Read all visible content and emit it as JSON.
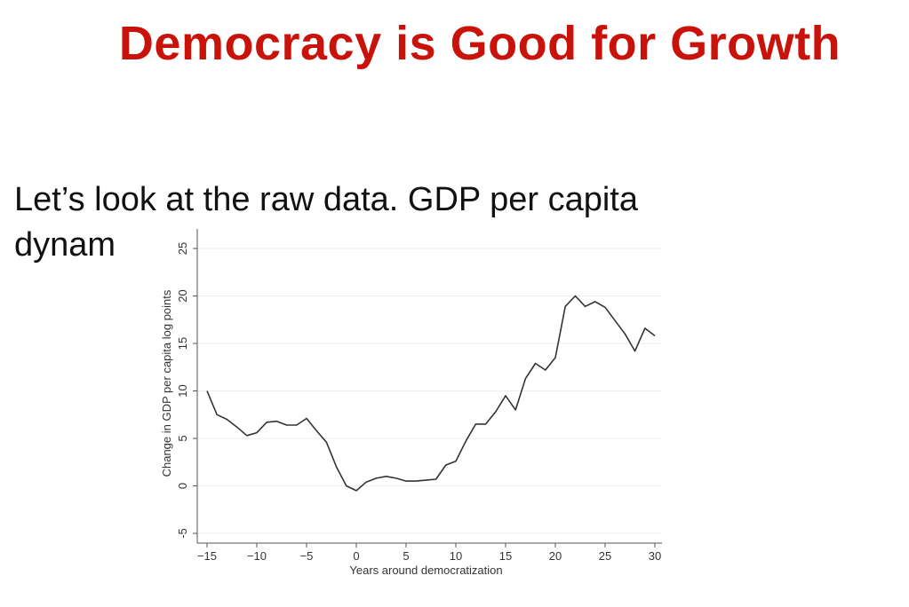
{
  "slide": {
    "title": "Democracy is Good for Growth",
    "text_line1": "Let’s look at the raw data. GDP per capita",
    "text_line2": "dynam",
    "colors": {
      "title": "#c8120a",
      "line": "#333333"
    }
  },
  "chart_data": {
    "type": "line",
    "title": "",
    "xlabel": "Years around democratization",
    "ylabel": "Change in GDP per capita log points",
    "xlim": [
      -15,
      30
    ],
    "ylim": [
      -5,
      25
    ],
    "xticks": [
      -15,
      -10,
      -5,
      0,
      5,
      10,
      15,
      20,
      25,
      30
    ],
    "yticks": [
      -5,
      0,
      5,
      10,
      15,
      20,
      25
    ],
    "grid": "horizontal",
    "series": [
      {
        "x": [
          -15,
          -14,
          -13,
          -12,
          -11,
          -10,
          -9,
          -8,
          -7,
          -6,
          -5,
          -4,
          -3,
          -2,
          -1,
          0,
          1,
          2,
          3,
          4,
          5,
          6,
          7,
          8,
          9,
          10,
          11,
          12,
          13,
          14,
          15,
          16,
          17,
          18,
          19,
          20,
          21,
          22,
          23,
          24,
          25,
          26,
          27,
          28,
          29,
          30
        ],
        "values": [
          10.0,
          7.5,
          7.0,
          6.2,
          5.3,
          5.6,
          6.7,
          6.8,
          6.4,
          6.4,
          7.1,
          5.8,
          4.6,
          2.0,
          0.0,
          -0.5,
          0.4,
          0.8,
          1.0,
          0.8,
          0.5,
          0.5,
          0.6,
          0.7,
          2.2,
          2.6,
          4.7,
          6.5,
          6.5,
          7.8,
          9.5,
          8.0,
          11.3,
          12.9,
          12.2,
          13.5,
          18.9,
          20.0,
          18.9,
          19.4,
          18.8,
          17.4,
          16.0,
          14.2,
          16.6,
          15.8
        ]
      }
    ]
  }
}
